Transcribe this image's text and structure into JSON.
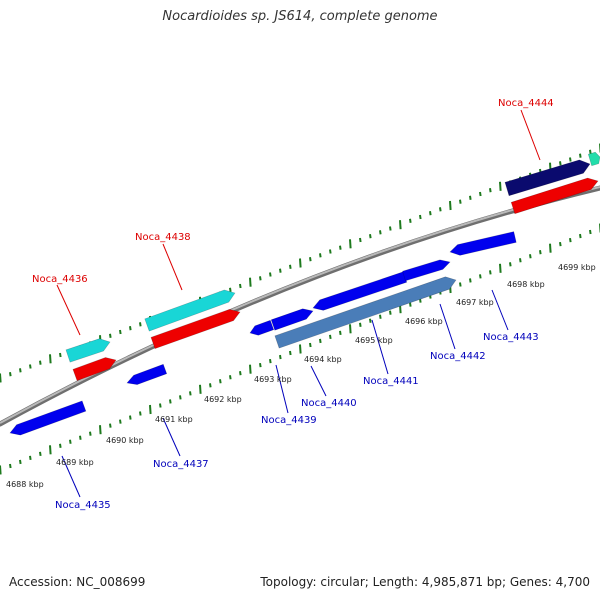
{
  "title": "Nocardioides sp. JS614, complete genome",
  "footer": {
    "accession": "Accession: NC_008699",
    "summary": "Topology: circular; Length: 4,985,871 bp; Genes: 4,700"
  },
  "colors": {
    "label_top": "#dd0000",
    "label_bottom": "#0000bb",
    "tick": "#1e7a1e",
    "backbone": "#8a8a8a",
    "gene_blue": "#0000ee",
    "gene_steel": "#4a7db8",
    "gene_cyan": "#19d6d6",
    "gene_red": "#ee0000",
    "gene_navy": "#0a0a6e",
    "gene_teal": "#22ddaa"
  },
  "scale_labels": [
    "4688 kbp",
    "4689 kbp",
    "4690 kbp",
    "4691 kbp",
    "4692 kbp",
    "4693 kbp",
    "4694 kbp",
    "4695 kbp",
    "4696 kbp",
    "4697 kbp",
    "4698 kbp",
    "4699 kbp"
  ],
  "gene_labels_top": [
    "Noca_4436",
    "Noca_4438",
    "Noca_4444"
  ],
  "gene_labels_bottom": [
    "Noca_4435",
    "Noca_4437",
    "Noca_4439",
    "Noca_4440",
    "Noca_4441",
    "Noca_4442",
    "Noca_4443"
  ]
}
